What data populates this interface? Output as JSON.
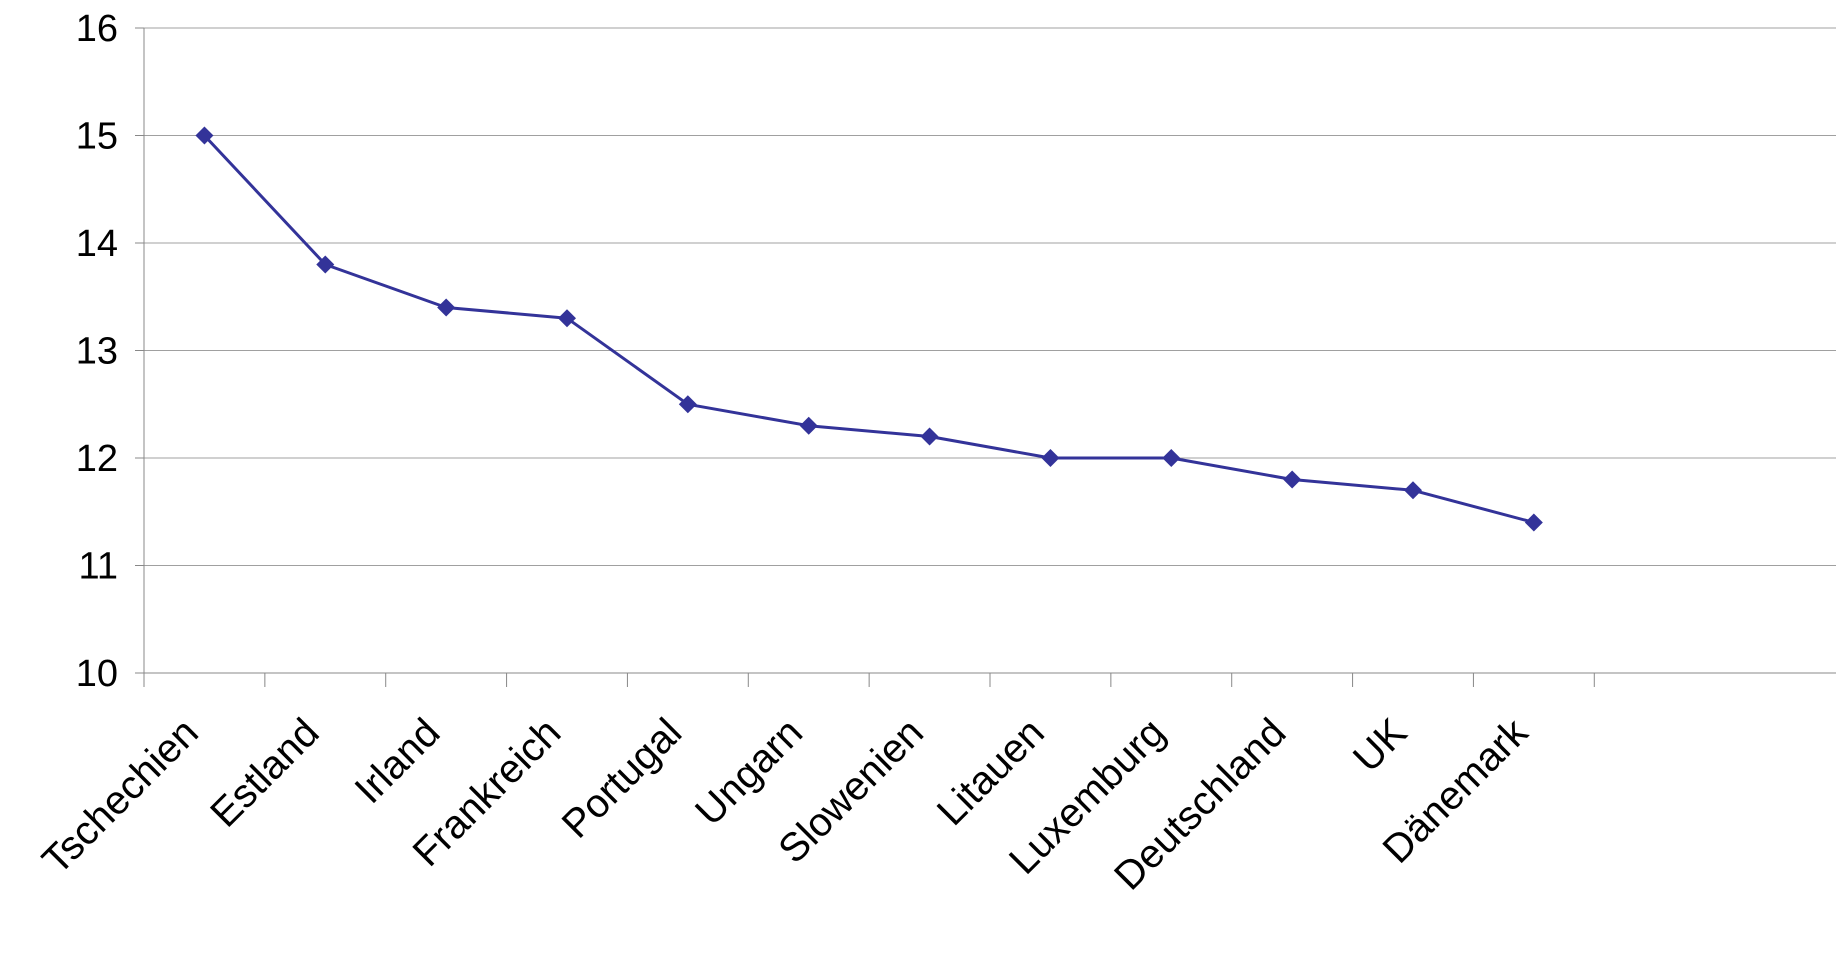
{
  "chart_data": {
    "type": "line",
    "title": "",
    "xlabel": "",
    "ylabel": "",
    "categories": [
      "Tschechien",
      "Estland",
      "Irland",
      "Frankreich",
      "Portugal",
      "Ungarn",
      "Slowenien",
      "Litauen",
      "Luxemburg",
      "Deutschland",
      "UK",
      "Dänemark"
    ],
    "series": [
      {
        "values": [
          15.0,
          13.8,
          13.4,
          13.3,
          12.5,
          12.3,
          12.2,
          12.0,
          12.0,
          11.8,
          11.7,
          11.4
        ]
      }
    ],
    "ylim": [
      10,
      16
    ],
    "yticks": [
      "10",
      "11",
      "12",
      "13",
      "14",
      "15",
      "16"
    ],
    "grid": true,
    "legend": "none",
    "colors": {
      "line": "#333399",
      "marker": "#333399",
      "grid": "#a0a0a0",
      "axis": "#888888"
    },
    "marker": "diamond"
  }
}
